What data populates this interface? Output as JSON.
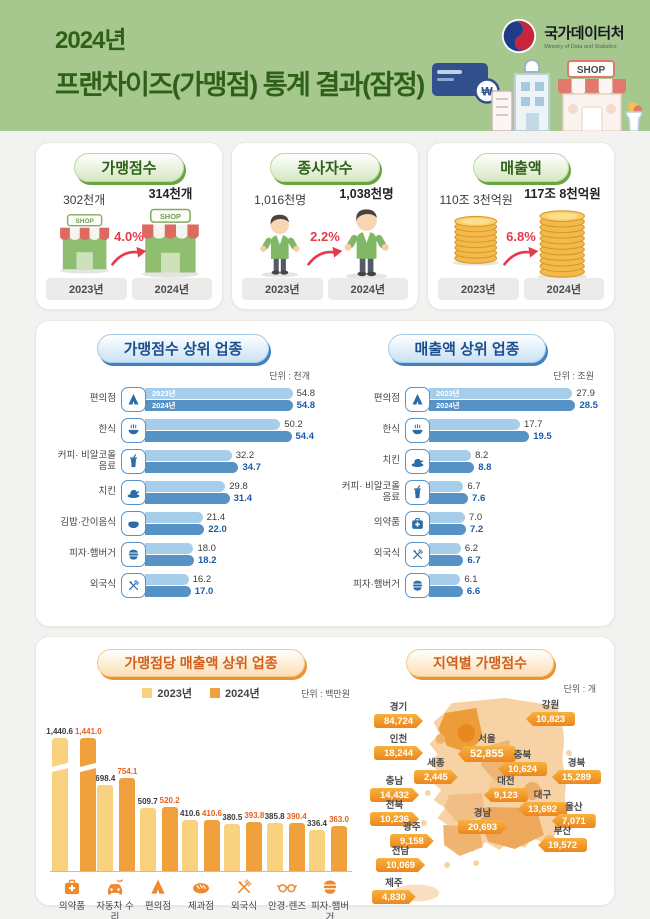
{
  "header": {
    "year_title": "2024년",
    "main_title": "프랜차이즈(가맹점) 통계 결과(잠정)",
    "agency_name": "국가데이터처",
    "agency_subtitle": "Ministry of Data and Statistics",
    "shop_sign": "SHOP"
  },
  "summary_cards": [
    {
      "title": "가맹점수",
      "prev_value": "302천개",
      "curr_value": "314천개",
      "change": "4.0%",
      "prev_year": "2023년",
      "curr_year": "2024년",
      "icon": "storefront-icon"
    },
    {
      "title": "종사자수",
      "prev_value": "1,016천명",
      "curr_value": "1,038천명",
      "change": "2.2%",
      "prev_year": "2023년",
      "curr_year": "2024년",
      "icon": "worker-icon"
    },
    {
      "title": "매출액",
      "prev_value": "110조 3천억원",
      "curr_value": "117조 8천억원",
      "change": "6.8%",
      "prev_year": "2023년",
      "curr_year": "2024년",
      "icon": "coin-stack-icon"
    }
  ],
  "chart_data": [
    {
      "type": "bar",
      "orientation": "horizontal",
      "title": "가맹점수 상위 업종",
      "unit": "단위 : 천개",
      "categories": [
        "편의점",
        "한식",
        "커피· 비알코올 음료",
        "치킨",
        "김밥·간이음식",
        "피자·햄버거",
        "외국식"
      ],
      "icons": [
        "store-icon",
        "korean-food-icon",
        "coffee-icon",
        "chicken-icon",
        "gimbap-icon",
        "burger-icon",
        "foreign-food-icon"
      ],
      "xlim": [
        0,
        62
      ],
      "series": [
        {
          "name": "2023년",
          "values": [
            54.8,
            50.2,
            32.2,
            29.8,
            21.4,
            18.0,
            16.2
          ],
          "display": [
            "54.8",
            "50.2",
            "32.2",
            "29.8",
            "21.4",
            "18.0",
            "16.2"
          ]
        },
        {
          "name": "2024년",
          "values": [
            54.8,
            54.4,
            34.7,
            31.4,
            22.0,
            18.2,
            17.0
          ],
          "display": [
            "54.8",
            "54.4",
            "34.7",
            "31.4",
            "22.0",
            "18.2",
            "17.0"
          ]
        }
      ]
    },
    {
      "type": "bar",
      "orientation": "horizontal",
      "title": "매출액 상위 업종",
      "unit": "단위 : 조원",
      "categories": [
        "편의점",
        "한식",
        "치킨",
        "커피· 비알코올 음료",
        "의약품",
        "외국식",
        "피자·햄버거"
      ],
      "icons": [
        "store-icon",
        "korean-food-icon",
        "chicken-icon",
        "coffee-icon",
        "pharmacy-icon",
        "foreign-food-icon",
        "burger-icon"
      ],
      "xlim": [
        0,
        32.5
      ],
      "series": [
        {
          "name": "2023년",
          "values": [
            27.9,
            17.7,
            8.2,
            6.7,
            7.0,
            6.2,
            6.1
          ],
          "display": [
            "27.9",
            "17.7",
            "8.2",
            "6.7",
            "7.0",
            "6.2",
            "6.1"
          ]
        },
        {
          "name": "2024년",
          "values": [
            28.5,
            19.5,
            8.8,
            7.6,
            7.2,
            6.7,
            6.6
          ],
          "display": [
            "28.5",
            "19.5",
            "8.8",
            "7.6",
            "7.2",
            "6.7",
            "6.6"
          ]
        }
      ]
    },
    {
      "type": "bar",
      "orientation": "vertical",
      "title": "가맹점당 매출액 상위 업종",
      "unit": "단위 : 백만원",
      "legend_position": "top",
      "axis_break_category": "의약품",
      "categories": [
        "의약품",
        "자동차 수리",
        "편의점",
        "제과점",
        "외국식",
        "안경·렌즈",
        "피자·햄버거"
      ],
      "icons": [
        "pharmacy-icon",
        "car-repair-icon",
        "store-icon",
        "bakery-icon",
        "foreign-food-icon",
        "glasses-icon",
        "burger-icon"
      ],
      "series": [
        {
          "name": "2023년",
          "values": [
            1440.6,
            698.4,
            509.7,
            410.6,
            380.5,
            385.8,
            336.4
          ],
          "display": [
            "1,440.6",
            "698.4",
            "509.7",
            "410.6",
            "380.5",
            "385.8",
            "336.4"
          ]
        },
        {
          "name": "2024년",
          "values": [
            1441.0,
            754.1,
            520.2,
            410.6,
            393.8,
            390.4,
            363.0
          ],
          "display": [
            "1,441.0",
            "754.1",
            "520.2",
            "410.6",
            "393.8",
            "390.4",
            "363.0"
          ]
        }
      ]
    },
    {
      "type": "map",
      "title": "지역별 가맹점수",
      "unit": "단위 : 개",
      "regions": [
        {
          "name": "경기",
          "value": 84724,
          "value_display": "84,724"
        },
        {
          "name": "강원",
          "value": 10823,
          "value_display": "10,823"
        },
        {
          "name": "인천",
          "value": 18244,
          "value_display": "18,244"
        },
        {
          "name": "서울",
          "value": 52855,
          "value_display": "52,855"
        },
        {
          "name": "충북",
          "value": 10624,
          "value_display": "10,624"
        },
        {
          "name": "경북",
          "value": 15289,
          "value_display": "15,289"
        },
        {
          "name": "세종",
          "value": 2445,
          "value_display": "2,445"
        },
        {
          "name": "충남",
          "value": 14432,
          "value_display": "14,432"
        },
        {
          "name": "대전",
          "value": 9123,
          "value_display": "9,123"
        },
        {
          "name": "대구",
          "value": 13692,
          "value_display": "13,692"
        },
        {
          "name": "전북",
          "value": 10236,
          "value_display": "10,236"
        },
        {
          "name": "울산",
          "value": 7071,
          "value_display": "7,071"
        },
        {
          "name": "광주",
          "value": 9158,
          "value_display": "9,158"
        },
        {
          "name": "경남",
          "value": 20693,
          "value_display": "20,693"
        },
        {
          "name": "부산",
          "value": 19572,
          "value_display": "19,572"
        },
        {
          "name": "전남",
          "value": 10069,
          "value_display": "10,069"
        },
        {
          "name": "제주",
          "value": 4830,
          "value_display": "4,830"
        }
      ]
    }
  ]
}
